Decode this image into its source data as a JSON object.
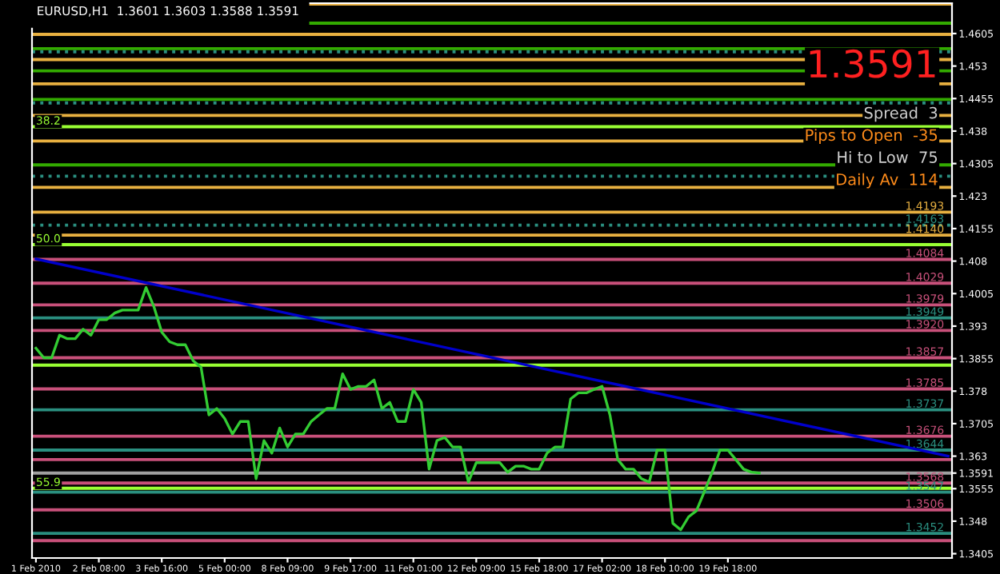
{
  "chart_data": {
    "type": "line",
    "title": "EURUSD,H1  1.3601 1.3603 1.3588 1.3591",
    "categories": [
      "1 Feb 2010",
      null,
      null,
      null,
      null,
      null,
      null,
      null,
      "2 Feb 08:00",
      null,
      null,
      null,
      null,
      null,
      null,
      null,
      "3 Feb 16:00",
      null,
      null,
      null,
      null,
      null,
      null,
      null,
      "5 Feb 00:00",
      null,
      null,
      null,
      null,
      null,
      null,
      null,
      "8 Feb 09:00",
      null,
      null,
      null,
      null,
      null,
      null,
      null,
      "9 Feb 17:00",
      null,
      null,
      null,
      null,
      null,
      null,
      null,
      "11 Feb 01:00",
      null,
      null,
      null,
      null,
      null,
      null,
      null,
      "12 Feb 09:00",
      null,
      null,
      null,
      null,
      null,
      null,
      null,
      "15 Feb 18:00",
      null,
      null,
      null,
      null,
      null,
      null,
      null,
      "17 Feb 02:00",
      null,
      null,
      null,
      null,
      null,
      null,
      null,
      "18 Feb 10:00",
      null,
      null,
      null,
      null,
      null,
      null,
      null,
      "19 Feb 18:00",
      null,
      null,
      null,
      null,
      null,
      null,
      null,
      null,
      null,
      null,
      null,
      null,
      null,
      null,
      null,
      null,
      null,
      null,
      null,
      null,
      null,
      null,
      null,
      null,
      null,
      null,
      null,
      null
    ],
    "ylim": [
      1.3395,
      1.4675
    ],
    "yticks": [
      1.3405,
      1.348,
      1.3555,
      1.3591,
      1.363,
      1.3705,
      1.378,
      1.3855,
      1.393,
      1.4005,
      1.408,
      1.4155,
      1.423,
      1.4305,
      1.438,
      1.4455,
      1.453,
      1.4605
    ],
    "grid": false,
    "legend": false,
    "marker": "none",
    "line_style": "solid",
    "series": [
      {
        "color": "#33cc33",
        "values": [
          1.3879,
          1.3857,
          1.3857,
          1.3909,
          1.3901,
          1.3901,
          1.3923,
          1.3909,
          1.3945,
          1.3945,
          1.396,
          1.3967,
          1.3967,
          1.3967,
          1.4019,
          1.3975,
          1.3916,
          1.3894,
          1.3887,
          1.3887,
          1.385,
          1.3835,
          1.3725,
          1.374,
          1.3717,
          1.3681,
          1.371,
          1.371,
          1.3578,
          1.3666,
          1.3637,
          1.3695,
          1.3651,
          1.3681,
          1.3681,
          1.371,
          1.3725,
          1.374,
          1.374,
          1.382,
          1.3784,
          1.3791,
          1.3791,
          1.3806,
          1.374,
          1.3754,
          1.371,
          1.371,
          1.3784,
          1.3754,
          1.36,
          1.3666,
          1.3673,
          1.3651,
          1.3651,
          1.357,
          1.3615,
          1.3615,
          1.3615,
          1.3615,
          1.3593,
          1.3607,
          1.3607,
          1.36,
          1.36,
          1.3637,
          1.3651,
          1.3651,
          1.3762,
          1.3776,
          1.3776,
          1.3784,
          1.3791,
          1.3725,
          1.3622,
          1.36,
          1.36,
          1.3578,
          1.357,
          1.3644,
          1.3644,
          1.3475,
          1.346,
          1.349,
          1.3504,
          1.3548,
          1.3593,
          1.3644,
          1.3644,
          1.3622,
          1.36,
          1.3593,
          1.3591,
          null,
          null,
          null,
          null,
          null,
          null,
          null,
          null,
          null,
          null,
          null,
          null,
          null,
          null,
          null,
          null,
          null,
          null,
          null,
          null,
          null,
          null,
          null,
          null
        ]
      },
      {
        "color": "#0000cc",
        "values": [
          1.4085,
          null,
          null,
          null,
          null,
          null,
          null,
          null,
          null,
          null,
          null,
          null,
          null,
          null,
          null,
          null,
          null,
          null,
          null,
          null,
          null,
          null,
          null,
          null,
          null,
          null,
          null,
          null,
          null,
          null,
          null,
          null,
          null,
          null,
          null,
          null,
          null,
          null,
          null,
          null,
          null,
          null,
          null,
          null,
          null,
          null,
          null,
          null,
          null,
          null,
          null,
          null,
          null,
          null,
          null,
          null,
          null,
          null,
          null,
          null,
          null,
          null,
          null,
          null,
          null,
          null,
          null,
          null,
          null,
          null,
          null,
          null,
          null,
          null,
          null,
          null,
          null,
          null,
          null,
          null,
          null,
          null,
          null,
          null,
          null,
          null,
          null,
          null,
          null,
          null,
          null,
          null,
          null,
          null,
          null,
          null,
          null,
          null,
          null,
          null,
          null,
          null,
          null,
          null,
          null,
          null,
          null,
          null,
          null,
          null,
          null,
          null,
          null,
          null,
          null,
          null,
          1.363
        ]
      }
    ],
    "ref_lines": [
      {
        "axis": "y",
        "value": 1.4673,
        "color": "#e8b040",
        "label": null
      },
      {
        "axis": "y",
        "value": 1.4629,
        "color": "#33aa00",
        "label": null
      },
      {
        "axis": "y",
        "value": 1.4603,
        "color": "#e8b040",
        "label": null
      },
      {
        "axis": "y",
        "value": 1.457,
        "color": "#33aa00",
        "label": null
      },
      {
        "axis": "y",
        "value": 1.4563,
        "color": "#2a8f80",
        "line_style": "dotted",
        "label": null
      },
      {
        "axis": "y",
        "value": 1.4545,
        "color": "#e8b040",
        "label": null
      },
      {
        "axis": "y",
        "value": 1.4519,
        "color": "#33aa00",
        "label": null
      },
      {
        "axis": "y",
        "value": 1.4489,
        "color": "#e8b040",
        "label": null
      },
      {
        "axis": "y",
        "value": 1.4453,
        "color": "#33aa00",
        "label": null
      },
      {
        "axis": "y",
        "value": 1.4445,
        "color": "#2a8f80",
        "line_style": "dotted",
        "label": null
      },
      {
        "axis": "y",
        "value": 1.4416,
        "color": "#e8b040",
        "label": null
      },
      {
        "axis": "y",
        "value": 1.439,
        "color": "#99ff33",
        "label": null
      },
      {
        "axis": "y",
        "value": 1.4357,
        "color": "#e8b040",
        "label": null
      },
      {
        "axis": "y",
        "value": 1.4302,
        "color": "#33aa00",
        "label": null
      },
      {
        "axis": "y",
        "value": 1.4276,
        "color": "#2a8f80",
        "line_style": "dotted",
        "label": null
      },
      {
        "axis": "y",
        "value": 1.425,
        "color": "#e8b040",
        "label": null
      },
      {
        "axis": "y",
        "value": 1.4193,
        "color": "#e8b040",
        "label": "1.4193"
      },
      {
        "axis": "y",
        "value": 1.4163,
        "color": "#2a8f80",
        "line_style": "dotted",
        "label": "1.4163"
      },
      {
        "axis": "y",
        "value": 1.414,
        "color": "#e8b040",
        "label": "1.4140"
      },
      {
        "axis": "y",
        "value": 1.4118,
        "color": "#99ff33",
        "label": null
      },
      {
        "axis": "y",
        "value": 1.4084,
        "color": "#c8507a",
        "label": "1.4084"
      },
      {
        "axis": "y",
        "value": 1.4029,
        "color": "#c8507a",
        "label": "1.4029"
      },
      {
        "axis": "y",
        "value": 1.3979,
        "color": "#c8507a",
        "label": "1.3979"
      },
      {
        "axis": "y",
        "value": 1.3949,
        "color": "#2a8f80",
        "label": "1.3949"
      },
      {
        "axis": "y",
        "value": 1.392,
        "color": "#c8507a",
        "label": "1.3920"
      },
      {
        "axis": "y",
        "value": 1.3857,
        "color": "#c8507a",
        "label": "1.3857"
      },
      {
        "axis": "y",
        "value": 1.384,
        "color": "#99ff33",
        "label": null
      },
      {
        "axis": "y",
        "value": 1.3785,
        "color": "#c8507a",
        "label": "1.3785"
      },
      {
        "axis": "y",
        "value": 1.3737,
        "color": "#2a8f80",
        "label": "1.3737"
      },
      {
        "axis": "y",
        "value": 1.3676,
        "color": "#c8507a",
        "label": "1.3676"
      },
      {
        "axis": "y",
        "value": 1.3644,
        "color": "#2a8f80",
        "label": "1.3644"
      },
      {
        "axis": "y",
        "value": 1.3622,
        "color": "#c8507a",
        "label": null
      },
      {
        "axis": "y",
        "value": 1.3591,
        "color": "#a0a0a0",
        "label": null
      },
      {
        "axis": "y",
        "value": 1.3568,
        "color": "#c8507a",
        "label": "1.3568"
      },
      {
        "axis": "y",
        "value": 1.3556,
        "color": "#99ff33",
        "label": null
      },
      {
        "axis": "y",
        "value": 1.3547,
        "color": "#2a8f80",
        "label": "1.3547"
      },
      {
        "axis": "y",
        "value": 1.3506,
        "color": "#c8507a",
        "label": "1.3506"
      },
      {
        "axis": "y",
        "value": 1.3452,
        "color": "#2a8f80",
        "label": "1.3452"
      },
      {
        "axis": "y",
        "value": 1.3435,
        "color": "#c8507a",
        "label": null
      }
    ],
    "annotations": [
      "1.3591",
      "Spread  3",
      "Pips to Open  -35",
      "Hi to Low  75",
      "Daily Av  114",
      {
        "text": "38.2",
        "y": 1.439
      },
      {
        "text": "50.0",
        "y": 1.4118
      },
      {
        "text": "55.9",
        "y": 1.3556
      }
    ]
  }
}
